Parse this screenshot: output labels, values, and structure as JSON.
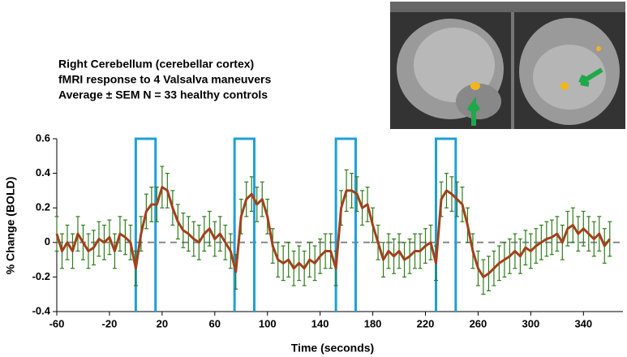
{
  "chart_data": {
    "type": "line",
    "title": [
      "Right Cerebellum (cerebellar cortex)",
      "fMRI response to 4 Valsalva maneuvers",
      "Average ± SEM N = 33 healthy controls"
    ],
    "x_label": "Time (seconds)",
    "y_label": "% Change (BOLD)",
    "x": [
      -60,
      -56,
      -52,
      -48,
      -44,
      -40,
      -36,
      -32,
      -28,
      -24,
      -20,
      -16,
      -12,
      -8,
      -4,
      0,
      4,
      8,
      12,
      16,
      20,
      24,
      28,
      32,
      36,
      40,
      44,
      48,
      52,
      56,
      60,
      64,
      68,
      72,
      76,
      80,
      84,
      88,
      92,
      96,
      100,
      104,
      108,
      112,
      116,
      120,
      124,
      128,
      132,
      136,
      140,
      144,
      148,
      152,
      156,
      160,
      164,
      168,
      172,
      176,
      180,
      184,
      188,
      192,
      196,
      200,
      204,
      208,
      212,
      216,
      220,
      224,
      228,
      232,
      236,
      240,
      244,
      248,
      252,
      256,
      260,
      264,
      268,
      272,
      276,
      280,
      284,
      288,
      292,
      296,
      300,
      304,
      308,
      312,
      316,
      320,
      324,
      328,
      332,
      336,
      340,
      344,
      348,
      352,
      356,
      360
    ],
    "values": [
      0.05,
      -0.05,
      0,
      -0.05,
      0.05,
      0,
      -0.05,
      -0.03,
      0.02,
      0,
      0.03,
      -0.05,
      0.05,
      0.03,
      0,
      -0.15,
      0.05,
      0.18,
      0.22,
      0.22,
      0.32,
      0.3,
      0.2,
      0.12,
      0.07,
      0.05,
      0.02,
      0,
      0.05,
      0.08,
      0.02,
      0.05,
      0,
      -0.05,
      -0.17,
      0.15,
      0.25,
      0.28,
      0.22,
      0.25,
      0.15,
      -0.02,
      -0.1,
      -0.12,
      -0.1,
      -0.15,
      -0.12,
      -0.15,
      -0.1,
      -0.12,
      -0.08,
      -0.05,
      -0.05,
      -0.15,
      0.2,
      0.3,
      0.3,
      0.28,
      0.2,
      0.22,
      0.1,
      0,
      -0.1,
      -0.05,
      -0.08,
      -0.05,
      -0.1,
      -0.08,
      -0.05,
      -0.05,
      -0.02,
      0,
      -0.12,
      0.25,
      0.3,
      0.28,
      0.25,
      0.22,
      0.1,
      -0.05,
      -0.15,
      -0.2,
      -0.18,
      -0.15,
      -0.12,
      -0.1,
      -0.08,
      -0.05,
      -0.08,
      -0.03,
      -0.05,
      -0.02,
      0,
      0.02,
      0.03,
      0.05,
      0,
      0.08,
      0.1,
      0.05,
      0.08,
      0.05,
      0.02,
      0.05,
      -0.02,
      0.02
    ],
    "errors": [
      0.1,
      0.1,
      0.1,
      0.1,
      0.1,
      0.1,
      0.1,
      0.1,
      0.1,
      0.1,
      0.1,
      0.1,
      0.1,
      0.1,
      0.1,
      0.1,
      0.1,
      0.1,
      0.1,
      0.1,
      0.12,
      0.1,
      0.1,
      0.1,
      0.1,
      0.1,
      0.1,
      0.1,
      0.1,
      0.1,
      0.1,
      0.1,
      0.1,
      0.1,
      0.1,
      0.1,
      0.1,
      0.1,
      0.1,
      0.1,
      0.1,
      0.1,
      0.1,
      0.1,
      0.1,
      0.1,
      0.1,
      0.1,
      0.1,
      0.1,
      0.1,
      0.1,
      0.1,
      0.1,
      0.1,
      0.12,
      0.1,
      0.1,
      0.1,
      0.1,
      0.1,
      0.1,
      0.1,
      0.1,
      0.1,
      0.1,
      0.1,
      0.1,
      0.1,
      0.1,
      0.1,
      0.1,
      0.1,
      0.1,
      0.1,
      0.1,
      0.1,
      0.1,
      0.1,
      0.1,
      0.1,
      0.1,
      0.1,
      0.1,
      0.1,
      0.1,
      0.1,
      0.1,
      0.1,
      0.1,
      0.1,
      0.1,
      0.1,
      0.1,
      0.1,
      0.1,
      0.1,
      0.1,
      0.1,
      0.1,
      0.1,
      0.1,
      0.1,
      0.1,
      0.1,
      0.1
    ],
    "color": "#a3401c",
    "error_color": "#2e7d1a",
    "windows": [
      [
        0,
        15
      ],
      [
        75,
        90
      ],
      [
        152,
        167
      ],
      [
        228,
        243
      ]
    ],
    "window_color": "#1ea0d8",
    "zero_line": true,
    "xlim": [
      -60,
      370
    ],
    "ylim": [
      -0.4,
      0.6
    ],
    "xticks": [
      -60,
      -20,
      20,
      60,
      100,
      140,
      180,
      220,
      260,
      300,
      340
    ],
    "yticks": [
      -0.4,
      -0.2,
      0,
      0.2,
      0.4,
      0.6
    ]
  }
}
